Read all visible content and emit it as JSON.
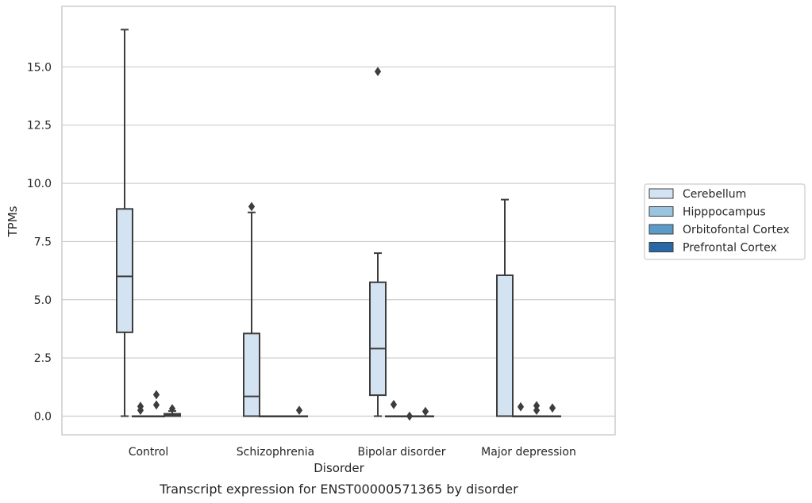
{
  "caption": "Transcript expression for ENST00000571365 by disorder",
  "chart_data": {
    "type": "box",
    "xlabel": "Disorder",
    "ylabel": "TPMs",
    "ylim": [
      -0.8,
      17.6
    ],
    "yticks": [
      "0.0",
      "2.5",
      "5.0",
      "7.5",
      "10.0",
      "12.5",
      "15.0"
    ],
    "grid": "horizontal",
    "legend_position": "outside-right",
    "categories": [
      "Control",
      "Schizophrenia",
      "Bipolar disorder",
      "Major depression"
    ],
    "series": [
      {
        "name": "Cerebellum",
        "color": "#d4e3f1",
        "boxes": [
          {
            "whisker_low": 0.0,
            "q1": 3.6,
            "median": 6.0,
            "q3": 8.9,
            "whisker_high": 16.6,
            "outliers": []
          },
          {
            "whisker_low": 0.0,
            "q1": 0.0,
            "median": 0.85,
            "q3": 3.55,
            "whisker_high": 8.75,
            "outliers": [
              9.0
            ]
          },
          {
            "whisker_low": 0.0,
            "q1": 0.9,
            "median": 2.9,
            "q3": 5.75,
            "whisker_high": 7.0,
            "outliers": [
              14.8
            ]
          },
          {
            "whisker_low": 0.0,
            "q1": 0.0,
            "median": 0.0,
            "q3": 6.05,
            "whisker_high": 9.3,
            "outliers": []
          }
        ]
      },
      {
        "name": "Hipppocampus",
        "color": "#9ac4e0",
        "boxes": [
          {
            "whisker_low": 0.0,
            "q1": 0.0,
            "median": 0.0,
            "q3": 0.0,
            "whisker_high": 0.0,
            "outliers": [
              0.25,
              0.42
            ]
          },
          {
            "whisker_low": 0.0,
            "q1": 0.0,
            "median": 0.0,
            "q3": 0.0,
            "whisker_high": 0.0,
            "outliers": []
          },
          {
            "whisker_low": 0.0,
            "q1": 0.0,
            "median": 0.0,
            "q3": 0.0,
            "whisker_high": 0.0,
            "outliers": [
              0.5
            ]
          },
          {
            "whisker_low": 0.0,
            "q1": 0.0,
            "median": 0.0,
            "q3": 0.0,
            "whisker_high": 0.0,
            "outliers": [
              0.4
            ]
          }
        ]
      },
      {
        "name": "Orbitofontal Cortex",
        "color": "#5a9bc8",
        "boxes": [
          {
            "whisker_low": 0.0,
            "q1": 0.0,
            "median": 0.0,
            "q3": 0.0,
            "whisker_high": 0.0,
            "outliers": [
              0.48,
              0.92
            ]
          },
          {
            "whisker_low": 0.0,
            "q1": 0.0,
            "median": 0.0,
            "q3": 0.0,
            "whisker_high": 0.0,
            "outliers": []
          },
          {
            "whisker_low": 0.0,
            "q1": 0.0,
            "median": 0.0,
            "q3": 0.0,
            "whisker_high": 0.0,
            "outliers": [
              0.0
            ]
          },
          {
            "whisker_low": 0.0,
            "q1": 0.0,
            "median": 0.0,
            "q3": 0.0,
            "whisker_high": 0.0,
            "outliers": [
              0.25,
              0.45
            ]
          }
        ]
      },
      {
        "name": "Prefrontal Cortex",
        "color": "#2868a8",
        "boxes": [
          {
            "whisker_low": 0.0,
            "q1": 0.0,
            "median": 0.05,
            "q3": 0.1,
            "whisker_high": 0.22,
            "outliers": [
              0.32
            ]
          },
          {
            "whisker_low": 0.0,
            "q1": 0.0,
            "median": 0.0,
            "q3": 0.0,
            "whisker_high": 0.0,
            "outliers": [
              0.25
            ]
          },
          {
            "whisker_low": 0.0,
            "q1": 0.0,
            "median": 0.0,
            "q3": 0.0,
            "whisker_high": 0.0,
            "outliers": [
              0.2
            ]
          },
          {
            "whisker_low": 0.0,
            "q1": 0.0,
            "median": 0.0,
            "q3": 0.0,
            "whisker_high": 0.0,
            "outliers": [
              0.35
            ]
          }
        ]
      }
    ]
  }
}
